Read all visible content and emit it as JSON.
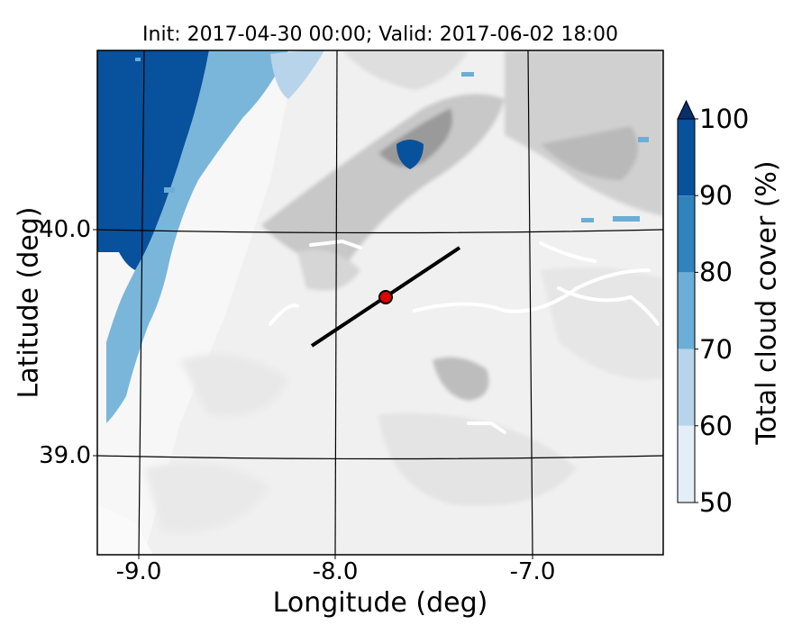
{
  "title": "Init: 2017-04-30 00:00; Valid: 2017-06-02 18:00",
  "axes": {
    "xlabel": "Longitude (deg)",
    "ylabel": "Latitude (deg)",
    "xticks": [
      "-9.0",
      "-8.0",
      "-7.0"
    ],
    "yticks": [
      "40.0",
      "39.0"
    ]
  },
  "colorbar": {
    "label": "Total cloud cover (%)",
    "ticks": [
      "50",
      "60",
      "70",
      "80",
      "90",
      "100"
    ],
    "colors": [
      "#e3eef8",
      "#b7d4ea",
      "#6baed6",
      "#3182bd",
      "#08519c"
    ],
    "extend_color": "#08306b"
  },
  "map": {
    "terrain_shading": "grayscale",
    "cloud_regions": "blue",
    "cross_section_line_color": "#000000",
    "marker_color": "#e00000"
  }
}
